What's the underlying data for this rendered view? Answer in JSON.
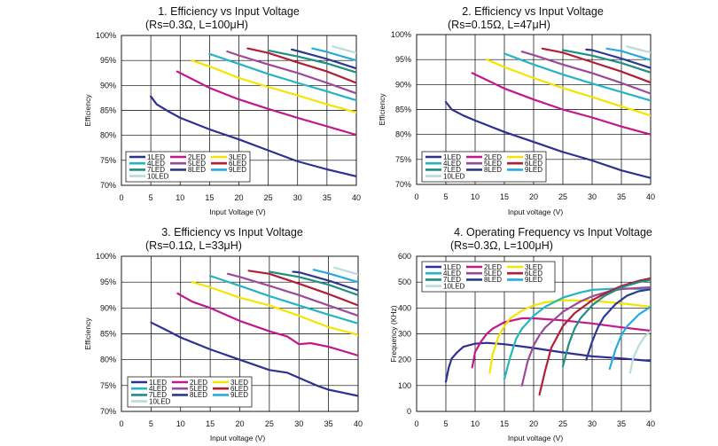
{
  "series_colors": {
    "1LED": "#2e3192",
    "2LED": "#c2188b",
    "3LED": "#f5e400",
    "4LED": "#26b3c2",
    "5LED": "#9b4a98",
    "6LED": "#b21e35",
    "7LED": "#1f8f82",
    "8LED": "#2b3990",
    "9LED": "#27aae1",
    "10LED": "#b8dcdc"
  },
  "chart_data": [
    {
      "type": "line",
      "title": "1. Efficiency vs Input Voltage",
      "subtitle": "(Rs=0.3Ω, L=100μH)",
      "xlabel": "Input Voltage (V)",
      "ylabel": "Efficiency",
      "xlim": [
        0,
        40
      ],
      "ylim": [
        70,
        100
      ],
      "xticks": [
        "0",
        "5",
        "10",
        "15",
        "20",
        "25",
        "30",
        "35",
        "40"
      ],
      "yticks": [
        "70%",
        "75%",
        "80%",
        "85%",
        "90%",
        "95%",
        "100%"
      ],
      "legend": {
        "labels": [
          "1LED",
          "2LED",
          "3LED",
          "4LED",
          "5LED",
          "6LED",
          "7LED",
          "8LED",
          "9LED",
          "10LED"
        ],
        "placement": "bottom-left"
      },
      "series": [
        {
          "name": "1LED",
          "x": [
            5,
            6,
            8,
            10,
            15,
            20,
            25,
            30,
            35,
            40
          ],
          "y": [
            87.8,
            86.2,
            84.8,
            83.5,
            81.2,
            79.2,
            77,
            74.8,
            73.2,
            71.8
          ]
        },
        {
          "name": "2LED",
          "x": [
            9.5,
            15,
            20,
            25,
            30,
            35,
            40
          ],
          "y": [
            92.8,
            89.5,
            87.2,
            85.3,
            83.5,
            81.8,
            80.1
          ]
        },
        {
          "name": "3LED",
          "x": [
            12,
            15,
            20,
            25,
            30,
            35,
            40
          ],
          "y": [
            95,
            93.8,
            91.5,
            89.7,
            88,
            86.2,
            84.6
          ]
        },
        {
          "name": "4LED",
          "x": [
            15,
            20,
            25,
            30,
            35,
            40
          ],
          "y": [
            96.3,
            94.3,
            92.3,
            90.5,
            88.8,
            87
          ]
        },
        {
          "name": "5LED",
          "x": [
            18,
            20,
            25,
            30,
            35,
            40
          ],
          "y": [
            96.8,
            96,
            94.2,
            92.5,
            90.5,
            88.4
          ]
        },
        {
          "name": "6LED",
          "x": [
            21.5,
            25,
            30,
            35,
            40
          ],
          "y": [
            97.4,
            96.5,
            94.6,
            92.8,
            90.5
          ]
        },
        {
          "name": "7LED",
          "x": [
            25,
            30,
            35,
            40
          ],
          "y": [
            97,
            95.8,
            94.4,
            92.6
          ]
        },
        {
          "name": "8LED",
          "x": [
            29,
            30,
            35,
            40
          ],
          "y": [
            97.2,
            96.9,
            95.3,
            93.4
          ]
        },
        {
          "name": "9LED",
          "x": [
            32.5,
            35,
            40
          ],
          "y": [
            97.4,
            96.7,
            95
          ]
        },
        {
          "name": "10LED",
          "x": [
            36,
            40
          ],
          "y": [
            97.8,
            96.5
          ]
        }
      ]
    },
    {
      "type": "line",
      "title": "2. Efficiency vs Input Voltage",
      "subtitle": "(Rs=0.15Ω, L=47μH)",
      "xlabel": "Input voltage (V)",
      "ylabel": "Efficiency",
      "xlim": [
        0,
        40
      ],
      "ylim": [
        70,
        100
      ],
      "xticks": [
        "0",
        "5",
        "10",
        "15",
        "20",
        "25",
        "30",
        "35",
        "40"
      ],
      "yticks": [
        "70%",
        "75%",
        "80%",
        "85%",
        "90%",
        "95%",
        "100%"
      ],
      "legend": {
        "labels": [
          "1LED",
          "2LED",
          "3LED",
          "4LED",
          "5LED",
          "6LED",
          "7LED",
          "8LED",
          "9LED",
          "10LED"
        ],
        "placement": "bottom-left"
      },
      "series": [
        {
          "name": "1LED",
          "x": [
            5,
            6,
            8,
            10,
            15,
            20,
            25,
            30,
            35,
            40
          ],
          "y": [
            86.5,
            85,
            83.8,
            82.8,
            80.5,
            78.5,
            76.5,
            74.8,
            72.8,
            71.3
          ]
        },
        {
          "name": "2LED",
          "x": [
            9.5,
            15,
            20,
            25,
            30,
            35,
            40
          ],
          "y": [
            92.3,
            89.2,
            87,
            85,
            83.4,
            81.6,
            80
          ]
        },
        {
          "name": "3LED",
          "x": [
            12,
            15,
            20,
            25,
            30,
            35,
            40
          ],
          "y": [
            95,
            93.5,
            91.3,
            89.3,
            87.5,
            85.6,
            83.8
          ]
        },
        {
          "name": "4LED",
          "x": [
            15,
            20,
            25,
            30,
            35,
            40
          ],
          "y": [
            96.2,
            94,
            92,
            90.2,
            88.5,
            86.8
          ]
        },
        {
          "name": "5LED",
          "x": [
            18,
            20,
            25,
            30,
            35,
            40
          ],
          "y": [
            96.6,
            95.9,
            94,
            92.3,
            90.3,
            88.2
          ]
        },
        {
          "name": "6LED",
          "x": [
            21.5,
            25,
            30,
            35,
            40
          ],
          "y": [
            97.2,
            96.4,
            94.5,
            92.6,
            90.4
          ]
        },
        {
          "name": "7LED",
          "x": [
            25,
            30,
            35,
            40
          ],
          "y": [
            96.9,
            95.8,
            94.3,
            92.4
          ]
        },
        {
          "name": "8LED",
          "x": [
            29,
            30,
            35,
            40
          ],
          "y": [
            97,
            96.9,
            95.2,
            93.3
          ]
        },
        {
          "name": "9LED",
          "x": [
            32.5,
            35,
            40
          ],
          "y": [
            97.2,
            96.7,
            94.9
          ]
        },
        {
          "name": "10LED",
          "x": [
            36,
            40
          ],
          "y": [
            97.6,
            96.4
          ]
        }
      ]
    },
    {
      "type": "line",
      "title": "3. Efficiency vs Input Voltage",
      "subtitle": "(Rs=0.1Ω, L=33μH)",
      "xlabel": "Input voltage (V)",
      "ylabel": "Efficiency",
      "xlim": [
        0,
        40
      ],
      "ylim": [
        70,
        100
      ],
      "xticks": [
        "0",
        "5",
        "10",
        "15",
        "20",
        "25",
        "30",
        "35",
        "40"
      ],
      "yticks": [
        "70%",
        "75%",
        "80%",
        "85%",
        "90%",
        "95%",
        "100%"
      ],
      "legend": {
        "labels": [
          "1LED",
          "2LED",
          "3LED",
          "4LED",
          "5LED",
          "6LED",
          "7LED",
          "8LED",
          "9LED",
          "10LED"
        ],
        "placement": "bottom-left"
      },
      "series": [
        {
          "name": "1LED",
          "x": [
            5,
            8,
            10,
            15,
            20,
            25,
            28,
            30,
            33,
            35,
            40
          ],
          "y": [
            87.2,
            85.5,
            84.3,
            82,
            80,
            78,
            77.5,
            76.5,
            75,
            74.2,
            73
          ]
        },
        {
          "name": "2LED",
          "x": [
            9.5,
            12,
            15,
            18,
            20,
            25,
            28,
            30,
            32,
            35,
            38,
            40
          ],
          "y": [
            92.8,
            91.2,
            90,
            88.5,
            87.5,
            85.5,
            84.5,
            83,
            83.2,
            82.5,
            81.5,
            80.8
          ]
        },
        {
          "name": "3LED",
          "x": [
            12,
            15,
            20,
            25,
            28,
            30,
            35,
            40
          ],
          "y": [
            95,
            94,
            92,
            90.5,
            89.3,
            88.5,
            86.3,
            84.8
          ]
        },
        {
          "name": "4LED",
          "x": [
            15,
            20,
            25,
            30,
            35,
            40
          ],
          "y": [
            96.2,
            94.3,
            92.3,
            90.5,
            88.7,
            87
          ]
        },
        {
          "name": "5LED",
          "x": [
            18,
            20,
            25,
            30,
            35,
            40
          ],
          "y": [
            96.6,
            96,
            94.3,
            92.5,
            90.5,
            88.5
          ]
        },
        {
          "name": "6LED",
          "x": [
            21.5,
            25,
            30,
            35,
            40
          ],
          "y": [
            97.2,
            96.6,
            94.7,
            92.7,
            90.5
          ]
        },
        {
          "name": "7LED",
          "x": [
            25,
            30,
            35,
            40
          ],
          "y": [
            97,
            96,
            94.5,
            92.5
          ]
        },
        {
          "name": "8LED",
          "x": [
            29,
            30,
            35,
            40
          ],
          "y": [
            97,
            96.9,
            95.3,
            93.4
          ]
        },
        {
          "name": "9LED",
          "x": [
            32.5,
            35,
            40
          ],
          "y": [
            97.4,
            96.7,
            95
          ]
        },
        {
          "name": "10LED",
          "x": [
            36,
            40
          ],
          "y": [
            97.8,
            96.5
          ]
        }
      ]
    },
    {
      "type": "line",
      "title": "4. Operating Frequency vs Input Voltage",
      "subtitle": "(Rs=0.3Ω, L=100μH)",
      "xlabel": "Input voltage (V)",
      "ylabel": "Frequency (KHz)",
      "xlim": [
        0,
        40
      ],
      "ylim": [
        0,
        600
      ],
      "xticks": [
        "0",
        "5",
        "10",
        "15",
        "20",
        "25",
        "30",
        "35",
        "40"
      ],
      "yticks": [
        "0",
        "100",
        "200",
        "300",
        "400",
        "500",
        "600"
      ],
      "legend": {
        "labels": [
          "1LED",
          "2LED",
          "3LED",
          "4LED",
          "5LED",
          "6LED",
          "7LED",
          "8LED",
          "9LED",
          "10LED"
        ],
        "placement": "top-left"
      },
      "series": [
        {
          "name": "1LED",
          "x": [
            5,
            5.5,
            6,
            7,
            8,
            10,
            12,
            15,
            20,
            25,
            30,
            35,
            40
          ],
          "y": [
            115,
            170,
            205,
            230,
            250,
            262,
            265,
            260,
            245,
            228,
            213,
            205,
            195
          ]
        },
        {
          "name": "2LED",
          "x": [
            9.5,
            10,
            11,
            12,
            13,
            15,
            18,
            20,
            25,
            30,
            35,
            40
          ],
          "y": [
            170,
            230,
            270,
            300,
            320,
            345,
            360,
            360,
            352,
            340,
            325,
            312
          ]
        },
        {
          "name": "3LED",
          "x": [
            12.5,
            13,
            14,
            15,
            16,
            18,
            20,
            22,
            25,
            30,
            35,
            40
          ],
          "y": [
            150,
            220,
            290,
            330,
            360,
            390,
            410,
            422,
            430,
            428,
            418,
            405
          ]
        },
        {
          "name": "4LED",
          "x": [
            15,
            16,
            17,
            18,
            20,
            22,
            25,
            28,
            30,
            35,
            40
          ],
          "y": [
            125,
            210,
            280,
            320,
            370,
            405,
            440,
            460,
            470,
            476,
            472
          ]
        },
        {
          "name": "5LED",
          "x": [
            18,
            19,
            20,
            21,
            22,
            25,
            28,
            30,
            33,
            35,
            40
          ],
          "y": [
            100,
            195,
            255,
            295,
            325,
            385,
            425,
            445,
            465,
            473,
            480
          ]
        },
        {
          "name": "6LED",
          "x": [
            21,
            22,
            23,
            25,
            27,
            30,
            33,
            35,
            38,
            40
          ],
          "y": [
            65,
            160,
            245,
            330,
            380,
            430,
            465,
            485,
            505,
            515
          ]
        },
        {
          "name": "7LED",
          "x": [
            25,
            26,
            27,
            28,
            30,
            32,
            35,
            38,
            40
          ],
          "y": [
            175,
            260,
            320,
            360,
            410,
            445,
            480,
            500,
            508
          ]
        },
        {
          "name": "8LED",
          "x": [
            29,
            30,
            31,
            32,
            34,
            36,
            38,
            40
          ],
          "y": [
            200,
            270,
            325,
            365,
            415,
            448,
            465,
            472
          ]
        },
        {
          "name": "9LED",
          "x": [
            33,
            34,
            35,
            36,
            38,
            40
          ],
          "y": [
            165,
            240,
            295,
            330,
            375,
            405
          ]
        },
        {
          "name": "10LED",
          "x": [
            36.5,
            37,
            38,
            39,
            40
          ],
          "y": [
            150,
            205,
            255,
            290,
            310
          ]
        }
      ]
    }
  ]
}
